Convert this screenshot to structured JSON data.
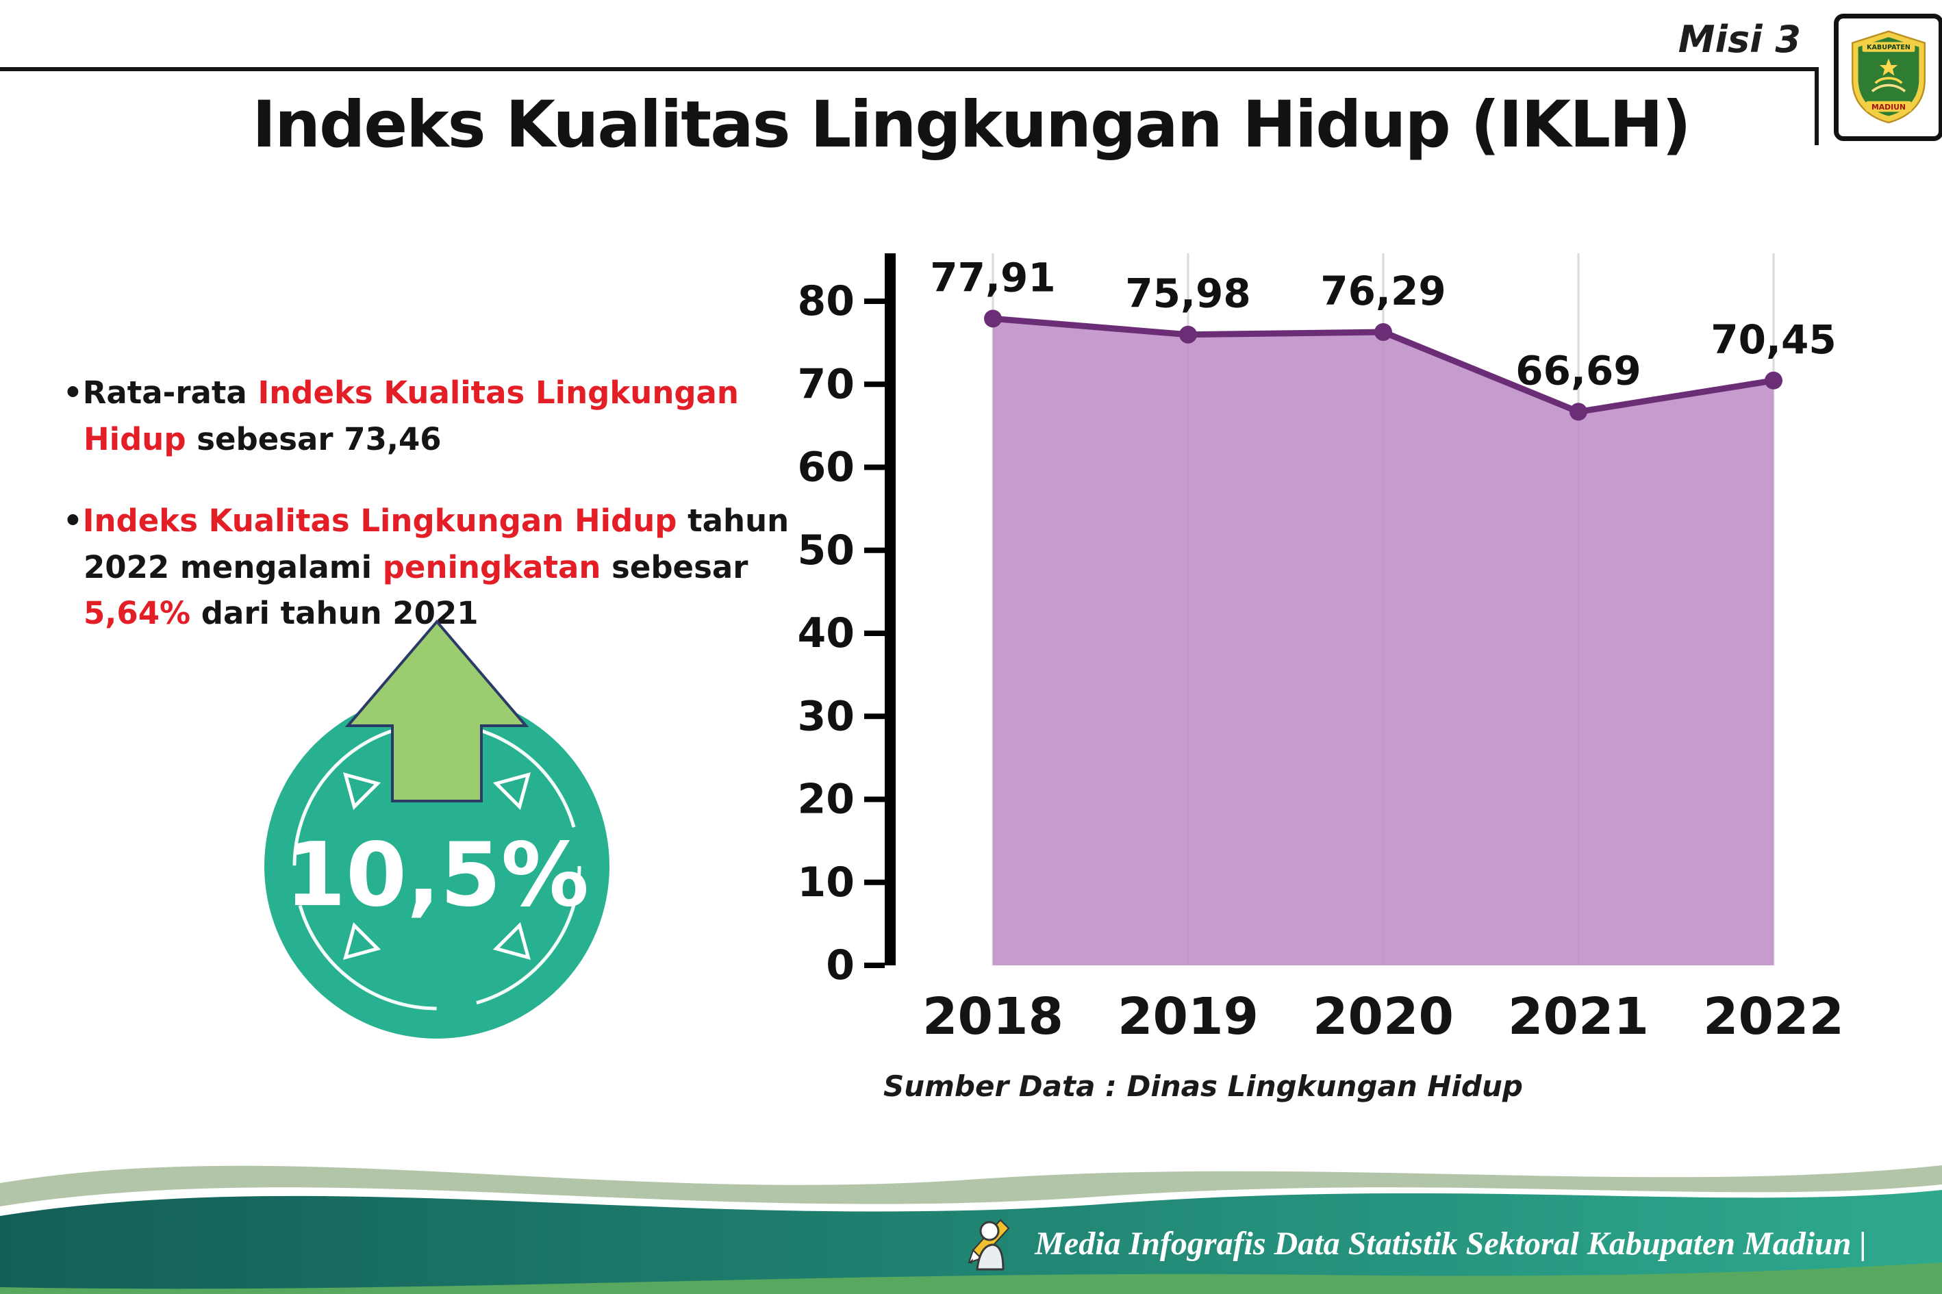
{
  "header": {
    "misi": "Misi 3",
    "title": "Indeks Kualitas Lingkungan Hidup (IKLH)"
  },
  "logo": {
    "top_text": "KABUPATEN",
    "bottom_text": "MADIUN"
  },
  "bullets": {
    "dot": "•",
    "b1": {
      "pre": "Rata-rata ",
      "red": "Indeks Kualitas Lingkungan Hidup",
      "post": " sebesar 73,46"
    },
    "b2": {
      "red1": "Indeks Kualitas Lingkungan Hidup",
      "mid1": " tahun 2022 mengalami ",
      "red2": "peningkatan",
      "mid2": " sebesar ",
      "red3": "5,64%",
      "post": " dari tahun 2021"
    }
  },
  "badge": {
    "percent": "10,5%",
    "circle_color": "#27b191",
    "arrow_color": "#9ccc70",
    "arrow_outline": "#2b3a67"
  },
  "chart_data": {
    "type": "area",
    "categories": [
      "2018",
      "2019",
      "2020",
      "2021",
      "2022"
    ],
    "values": [
      77.91,
      75.98,
      76.29,
      66.69,
      70.45
    ],
    "labels": [
      "77,91",
      "75,98",
      "76,29",
      "66,69",
      "70,45"
    ],
    "title": "",
    "xlabel": "",
    "ylabel": "",
    "ylim": [
      0,
      80
    ],
    "ytick_step": 10,
    "grid": "vertical-light",
    "legend": "none",
    "line_color": "#6c2d77",
    "fill_color": "#bd8ec6",
    "point_color": "#6c2d77",
    "axis_color": "#000000"
  },
  "caption": "Sumber Data : Dinas Lingkungan Hidup",
  "footer": {
    "text": "Media Infografis Data Statistik Sektoral Kabupaten Madiun |"
  }
}
